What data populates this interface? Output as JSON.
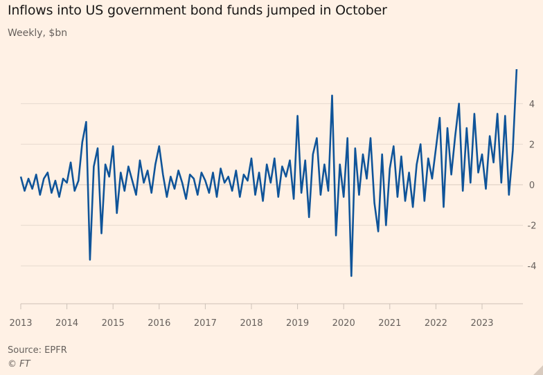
{
  "chart_data": {
    "type": "line",
    "title": "Inflows into US government bond funds jumped in October",
    "subtitle": "Weekly, $bn",
    "source": "Source: EPFR",
    "copyright": "© FT",
    "xlim": [
      "2013-01",
      "2023-12"
    ],
    "ylim": [
      -6,
      6
    ],
    "yticks": [
      -4,
      -2,
      0,
      2,
      4
    ],
    "xticks": [
      "2013",
      "2014",
      "2015",
      "2016",
      "2017",
      "2018",
      "2019",
      "2020",
      "2021",
      "2022",
      "2023"
    ],
    "grid": true,
    "y_axis_position": "right",
    "line_color": "#0f5499",
    "series": [
      {
        "values_by_year": {
          "2013": [
            0.4,
            -0.3,
            0.3,
            -0.2,
            0.5,
            -0.5,
            0.3,
            0.6,
            -0.4,
            0.2,
            -0.6,
            0.3
          ],
          "2014": [
            0.1,
            1.1,
            -0.3,
            0.2,
            2.1,
            3.1,
            -3.7,
            0.9,
            1.8,
            -2.4,
            1.0,
            0.4
          ],
          "2015": [
            1.9,
            -1.4,
            0.6,
            -0.3,
            0.9,
            0.2,
            -0.5,
            1.2,
            0.1,
            0.7,
            -0.4,
            1.0
          ],
          "2016": [
            1.9,
            0.5,
            -0.6,
            0.4,
            -0.2,
            0.7,
            0.1,
            -0.7,
            0.5,
            0.3,
            -0.5,
            0.6
          ],
          "2017": [
            0.2,
            -0.4,
            0.6,
            -0.6,
            0.8,
            0.1,
            0.4,
            -0.3,
            0.7,
            -0.6,
            0.5,
            0.2
          ],
          "2018": [
            1.3,
            -0.5,
            0.6,
            -0.8,
            1.0,
            0.1,
            1.3,
            -0.6,
            0.9,
            0.4,
            1.2,
            -0.7
          ],
          "2019": [
            3.4,
            -0.4,
            1.2,
            -1.6,
            1.5,
            2.3,
            -0.5,
            1.0,
            -0.3,
            4.4,
            -2.5,
            1.0
          ],
          "2020": [
            -0.6,
            2.3,
            -4.5,
            1.8,
            -0.5,
            1.5,
            0.3,
            2.3,
            -0.9,
            -2.3,
            1.5,
            -2.0
          ],
          "2021": [
            0.8,
            1.9,
            -0.6,
            1.4,
            -0.8,
            0.6,
            -1.1,
            1.0,
            2.0,
            -0.8,
            1.3,
            0.3
          ],
          "2022": [
            1.8,
            3.3,
            -1.1,
            2.8,
            0.5,
            2.4,
            4.0,
            -0.3,
            2.8,
            0.1,
            3.5,
            0.6
          ],
          "2023": [
            1.5,
            -0.2,
            2.4,
            1.1,
            3.5,
            0.1,
            3.4,
            -0.5,
            1.7,
            5.7
          ]
        }
      }
    ]
  },
  "colors": {
    "background": "#fff1e5",
    "line": "#0f5499",
    "grid": "#e6d9ce",
    "text": "#66605c"
  }
}
